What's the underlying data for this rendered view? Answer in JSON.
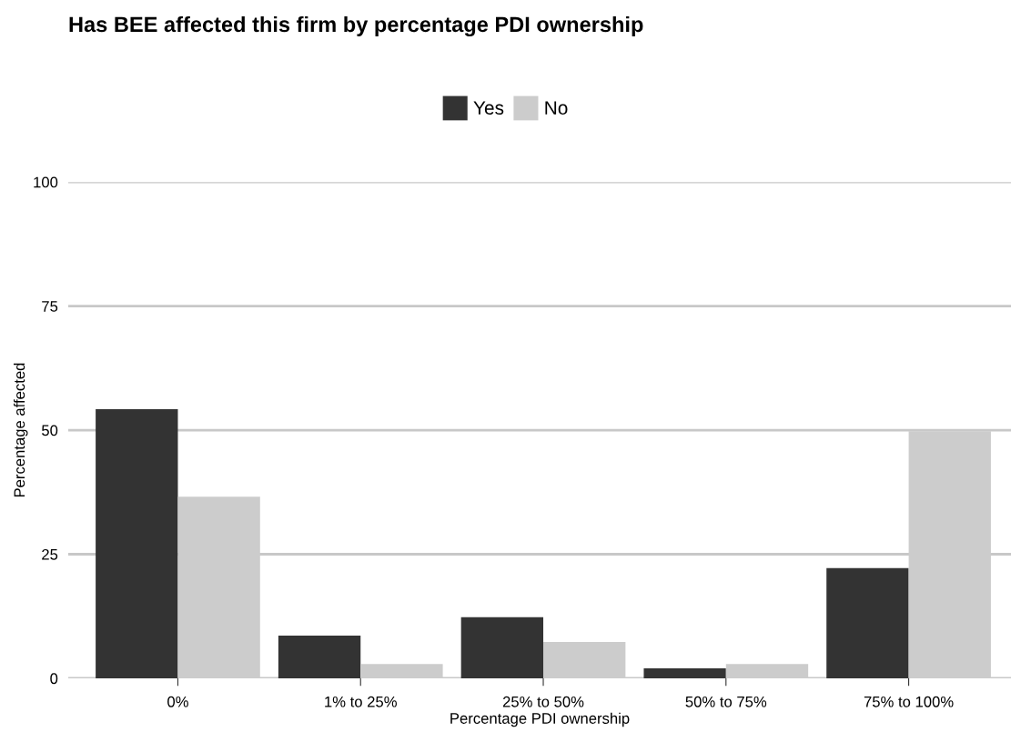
{
  "chart_data": {
    "type": "bar",
    "title": "Has BEE affected this firm by percentage PDI ownership",
    "xlabel": "Percentage PDI ownership",
    "ylabel": "Percentage affected",
    "categories": [
      "0%",
      "1% to 25%",
      "25% to 50%",
      "50% to 75%",
      "75% to 100%"
    ],
    "series": [
      {
        "name": "Yes",
        "color": "#333333",
        "values": [
          54.2,
          8.6,
          12.3,
          2.0,
          22.2
        ]
      },
      {
        "name": "No",
        "color": "#cccccc",
        "values": [
          36.6,
          2.9,
          7.3,
          2.9,
          49.8
        ]
      }
    ],
    "ylim": [
      0,
      100
    ],
    "yticks": [
      0,
      25,
      50,
      75,
      100
    ],
    "grid": "y",
    "legend": "top"
  }
}
